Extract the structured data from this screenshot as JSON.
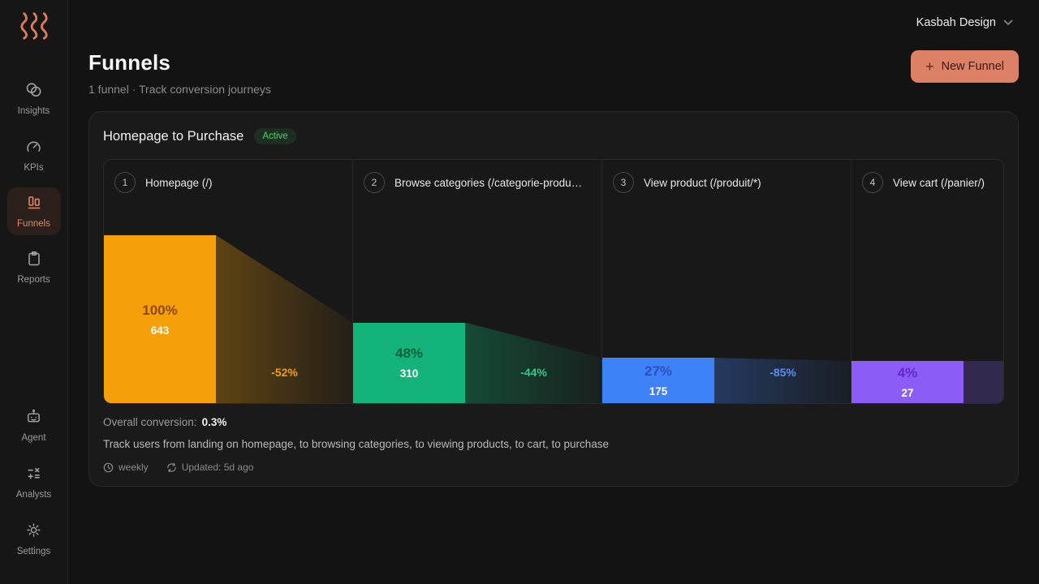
{
  "topbar": {
    "workspace": "Kasbah Design"
  },
  "sidebar": {
    "items": [
      {
        "label": "Insights"
      },
      {
        "label": "KPIs"
      },
      {
        "label": "Funnels",
        "active": true
      },
      {
        "label": "Reports"
      }
    ],
    "bottom_items": [
      {
        "label": "Agent"
      },
      {
        "label": "Analysts"
      },
      {
        "label": "Settings"
      }
    ]
  },
  "header": {
    "title": "Funnels",
    "subtitle": "1 funnel · Track conversion journeys",
    "new_funnel_label": "New Funnel"
  },
  "funnel_card": {
    "title": "Homepage to Purchase",
    "status": "Active",
    "overall_conversion_label": "Overall conversion:",
    "overall_conversion_value": "0.3%",
    "description": "Track users from landing on homepage, to browsing categories, to viewing products, to cart, to purchase",
    "frequency": "weekly",
    "updated": "Updated: 5d ago"
  },
  "chart_data": {
    "type": "funnel",
    "title": "Homepage to Purchase",
    "max_pct": 100,
    "steps": [
      {
        "index": "1",
        "label": "Homepage (/)",
        "pct": 100,
        "pct_label": "100%",
        "count": "643",
        "color": "#f5a00b",
        "pct_text_color": "#8a4a07",
        "connector_rgb": "245,158,11",
        "drop_label": "-52%",
        "drop_color": "#f59e0b"
      },
      {
        "index": "2",
        "label": "Browse categories (/categorie-produ…",
        "pct": 48,
        "pct_label": "48%",
        "count": "310",
        "color": "#13b379",
        "pct_text_color": "#0b5e3e",
        "connector_rgb": "18,179,119",
        "drop_label": "-44%",
        "drop_color": "#2dca8e"
      },
      {
        "index": "3",
        "label": "View product (/produit/*)",
        "pct": 27,
        "pct_label": "27%",
        "count": "175",
        "color": "#3d82f6",
        "pct_text_color": "#2d4ec0",
        "connector_rgb": "61,130,246",
        "drop_label": "-85%",
        "drop_color": "#5b8ff5"
      },
      {
        "index": "4",
        "label": "View cart (/panier/)",
        "pct": 4,
        "pct_label": "4%",
        "count": "27",
        "color": "#8b5cf6",
        "pct_text_color": "#6526c9",
        "tail_rgba": "rgba(139,92,246,0.24)"
      }
    ]
  }
}
